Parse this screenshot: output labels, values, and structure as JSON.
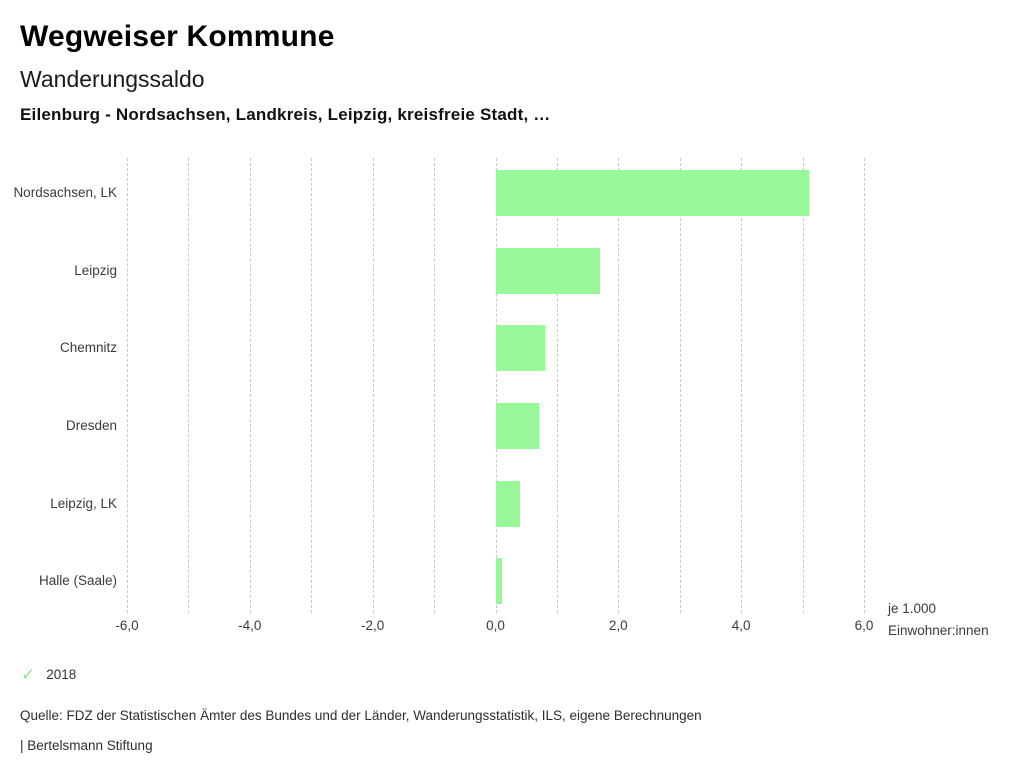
{
  "header": {
    "title": "Wegweiser Kommune",
    "subtitle": "Wanderungssaldo",
    "selection": "Eilenburg - Nordsachsen, Landkreis, Leipzig, kreisfreie Stadt, …"
  },
  "chart_data": {
    "type": "bar",
    "orientation": "horizontal",
    "title": "Wanderungssaldo",
    "categories": [
      "Nordsachsen, LK",
      "Leipzig",
      "Chemnitz",
      "Dresden",
      "Leipzig, LK",
      "Halle (Saale)"
    ],
    "series": [
      {
        "name": "2018",
        "values": [
          5.1,
          1.7,
          0.8,
          0.7,
          0.4,
          0.1
        ]
      }
    ],
    "xlim": [
      -6,
      6
    ],
    "grid": true,
    "grid_step": 1,
    "x_tick_values": [
      -6,
      -4,
      -2,
      0,
      2,
      4,
      6
    ],
    "x_tick_labels": [
      "-6,0",
      "-4,0",
      "-2,0",
      "0,0",
      "2,0",
      "4,0",
      "6,0"
    ],
    "xlabel": "je 1.000 Einwohner:innen",
    "unit_label_lines": [
      "je 1.000",
      "Einwohner:innen"
    ],
    "bar_color": "#98f798",
    "gridline_color": "#c9c9c9",
    "legend_position": "bottom-left"
  },
  "legend": {
    "check_glyph": "✓",
    "check_color": "#8ce28c",
    "label": "2018"
  },
  "footer": {
    "source": "Quelle: FDZ der Statistischen Ämter des Bundes und der Länder, Wanderungsstatistik, ILS, eigene Berechnungen",
    "attribution": "| Bertelsmann Stiftung"
  }
}
